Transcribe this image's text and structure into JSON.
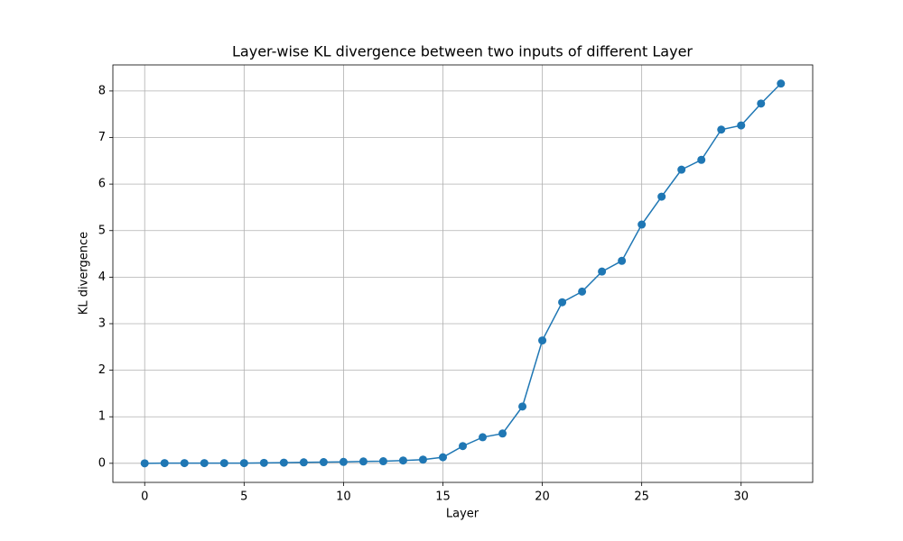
{
  "chart_data": {
    "type": "line",
    "title": "Layer-wise KL divergence between two inputs of different Layer",
    "x_label": "Layer",
    "y_label": "KL divergence",
    "x": [
      0,
      1,
      2,
      3,
      4,
      5,
      6,
      7,
      8,
      9,
      10,
      11,
      12,
      13,
      14,
      15,
      16,
      17,
      18,
      19,
      20,
      21,
      22,
      23,
      24,
      25,
      26,
      27,
      28,
      29,
      30,
      31,
      32
    ],
    "series": [
      {
        "color": "#1f77b4",
        "values": [
          0.0,
          0.005,
          0.005,
          0.005,
          0.005,
          0.005,
          0.01,
          0.015,
          0.02,
          0.025,
          0.03,
          0.04,
          0.045,
          0.06,
          0.08,
          0.13,
          0.37,
          0.56,
          0.64,
          1.22,
          2.64,
          3.46,
          3.69,
          4.12,
          4.35,
          5.13,
          5.73,
          6.31,
          6.52,
          7.17,
          7.26,
          7.73,
          8.16
        ]
      }
    ],
    "xlim": [
      -1.6,
      33.6
    ],
    "xticks": [
      0,
      5,
      10,
      15,
      20,
      25,
      30
    ],
    "ylim": [
      -0.41,
      8.56
    ],
    "yticks": [
      0,
      1,
      2,
      3,
      4,
      5,
      6,
      7,
      8
    ],
    "grid": true
  }
}
